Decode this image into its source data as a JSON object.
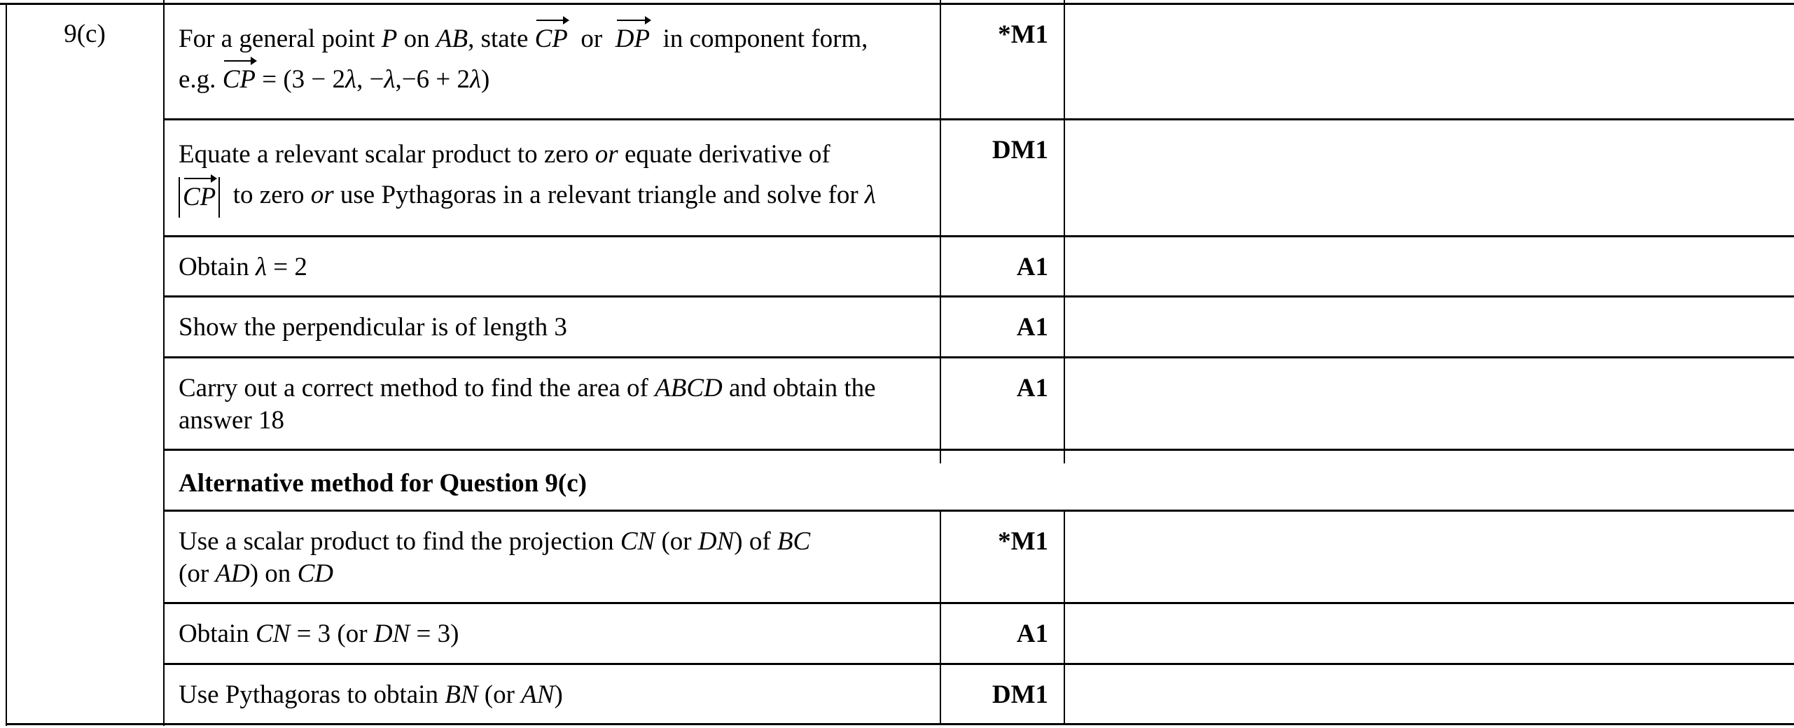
{
  "question": "9(c)",
  "rows": [
    {
      "runs": [
        [
          "t",
          "For a general point "
        ],
        [
          "i",
          "P"
        ],
        [
          "t",
          " on "
        ],
        [
          "i",
          "AB"
        ],
        [
          "t",
          ", state "
        ],
        [
          "v",
          "CP"
        ],
        [
          "t",
          "  or  "
        ],
        [
          "v",
          "DP"
        ],
        [
          "t",
          "  in component form,"
        ],
        [
          "br",
          ""
        ],
        [
          "t",
          "e.g. "
        ],
        [
          "v",
          "CP"
        ],
        [
          "t",
          " = (3 − 2"
        ],
        [
          "i",
          "λ"
        ],
        [
          "t",
          ", −"
        ],
        [
          "i",
          "λ"
        ],
        [
          "t",
          ",−6 + 2"
        ],
        [
          "i",
          "λ"
        ],
        [
          "t",
          ")"
        ]
      ],
      "mark": "*M1"
    },
    {
      "runs": [
        [
          "t",
          "Equate a relevant scalar product to zero "
        ],
        [
          "i",
          "or"
        ],
        [
          "t",
          " equate derivative of"
        ],
        [
          "br",
          ""
        ],
        [
          "abs",
          "CP"
        ],
        [
          "t",
          "  to zero "
        ],
        [
          "i",
          "or"
        ],
        [
          "t",
          " use Pythagoras in a relevant triangle and solve for "
        ],
        [
          "i",
          "λ"
        ]
      ],
      "mark": "DM1"
    },
    {
      "runs": [
        [
          "t",
          "Obtain "
        ],
        [
          "i",
          "λ"
        ],
        [
          "t",
          " = 2"
        ]
      ],
      "mark": "A1"
    },
    {
      "runs": [
        [
          "t",
          "Show the perpendicular is of length 3"
        ]
      ],
      "mark": "A1"
    },
    {
      "runs": [
        [
          "t",
          "Carry out a correct method to find the area of "
        ],
        [
          "i",
          "ABCD"
        ],
        [
          "t",
          " and obtain the"
        ],
        [
          "br",
          ""
        ],
        [
          "t",
          "answer 18"
        ]
      ],
      "mark": "A1"
    },
    {
      "runs": [
        [
          "t",
          "Alternative method for Question 9(c)"
        ]
      ],
      "mark": "",
      "heading": true
    },
    {
      "runs": [
        [
          "t",
          "Use a scalar product to find the projection "
        ],
        [
          "i",
          "CN"
        ],
        [
          "t",
          " (or "
        ],
        [
          "i",
          "DN"
        ],
        [
          "t",
          ") of "
        ],
        [
          "i",
          "BC"
        ],
        [
          "br",
          ""
        ],
        [
          "t",
          "(or "
        ],
        [
          "i",
          "AD"
        ],
        [
          "t",
          ") on "
        ],
        [
          "i",
          "CD"
        ]
      ],
      "mark": "*M1"
    },
    {
      "runs": [
        [
          "t",
          "Obtain "
        ],
        [
          "i",
          "CN"
        ],
        [
          "t",
          " = 3 (or "
        ],
        [
          "i",
          "DN"
        ],
        [
          "t",
          " = 3)"
        ]
      ],
      "mark": "A1"
    },
    {
      "runs": [
        [
          "t",
          "Use Pythagoras to obtain "
        ],
        [
          "i",
          "BN"
        ],
        [
          "t",
          " (or "
        ],
        [
          "i",
          "AN"
        ],
        [
          "t",
          ")"
        ]
      ],
      "mark": "DM1"
    }
  ]
}
